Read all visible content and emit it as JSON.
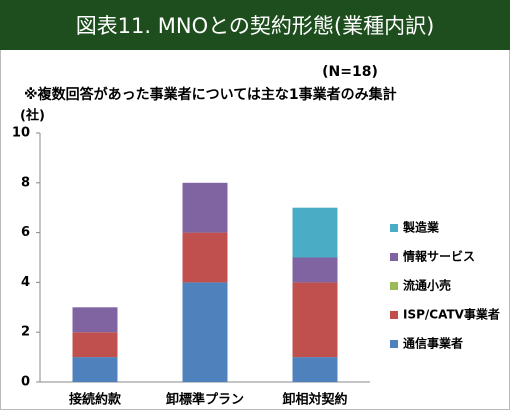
{
  "chart_data": {
    "type": "bar",
    "stacked": true,
    "title": "図表11. MNOとの契約形態(業種内訳)",
    "subtitle": "(N=18)",
    "note": "※複数回答があった事業者については主な1事業者のみ集計",
    "y_label": "(社)",
    "categories": [
      "接続約款",
      "卸標準プラン",
      "卸相対契約"
    ],
    "series": [
      {
        "name": "通信事業者",
        "color": "#4f81bd",
        "values": [
          1,
          4,
          1
        ]
      },
      {
        "name": "ISP/CATV事業者",
        "color": "#c0504d",
        "values": [
          1,
          2,
          3
        ]
      },
      {
        "name": "流通小売",
        "color": "#9bbb59",
        "values": [
          0,
          0,
          0
        ]
      },
      {
        "name": "情報サービス",
        "color": "#8064a2",
        "values": [
          1,
          2,
          1
        ]
      },
      {
        "name": "製造業",
        "color": "#4bacc6",
        "values": [
          0,
          0,
          2
        ]
      }
    ],
    "ylim": [
      0,
      10
    ],
    "yticks": [
      0,
      2,
      4,
      6,
      8,
      10
    ],
    "grid": false,
    "legend": "right"
  }
}
